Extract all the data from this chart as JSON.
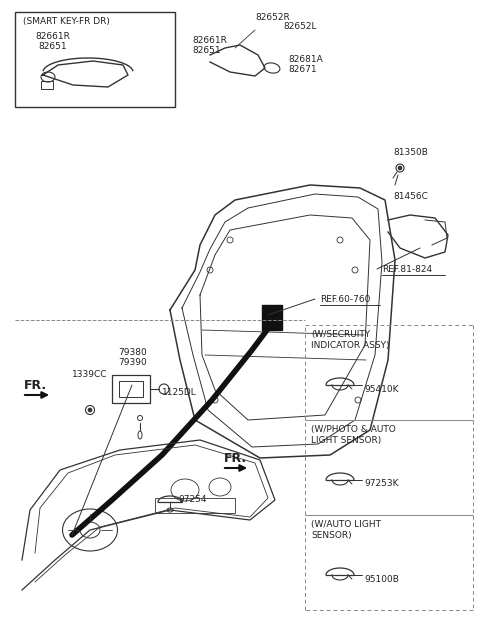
{
  "bg_color": "#ffffff",
  "line_color": "#333333",
  "text_color": "#222222",
  "parts_labels": {
    "smart_key_box": "(SMART KEY-FR DR)",
    "smart_key_parts1": "82661R",
    "smart_key_parts2": "82651",
    "handle_r": "82652R",
    "handle_l": "82652L",
    "handle_parts1": "82661R",
    "handle_parts2": "82651",
    "lock_parts1": "82681A",
    "lock_parts2": "82671",
    "ref_81_824": "REF.81-824",
    "ref_60_760": "REF.60-760",
    "part_81350B": "81350B",
    "part_81456C": "81456C",
    "part_79380": "79380",
    "part_79390": "79390",
    "part_1339CC": "1339CC",
    "part_1125DL": "1125DL",
    "part_97254": "97254",
    "fr_label": "FR.",
    "fr_label2": "FR.",
    "sensor_box_title1a": "(W/SECRUITY",
    "sensor_box_title1b": "INDICATOR ASSY)",
    "sensor_part1": "95410K",
    "sensor_box_title2a": "(W/PHOTO & AUTO",
    "sensor_box_title2b": "LIGHT SENSOR)",
    "sensor_part2": "97253K",
    "sensor_box_title3a": "(W/AUTO LIGHT",
    "sensor_box_title3b": "SENSOR)",
    "sensor_part3": "95100B"
  }
}
